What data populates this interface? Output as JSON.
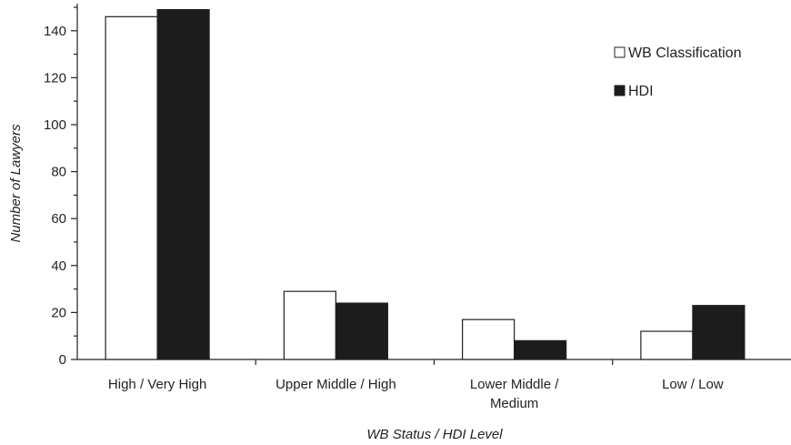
{
  "chart_data": {
    "type": "bar",
    "title": "",
    "xlabel": "WB Status / HDI Level",
    "ylabel": "Number of Lawyers",
    "categories": [
      [
        "High / Very High"
      ],
      [
        "Upper Middle / High"
      ],
      [
        "Lower Middle /",
        "Medium"
      ],
      [
        "Low / Low"
      ]
    ],
    "series": [
      {
        "name": "WB Classification",
        "values": [
          146,
          29,
          17,
          12
        ],
        "color": "#ffffff"
      },
      {
        "name": "HDI",
        "values": [
          149,
          24,
          8,
          23
        ],
        "color": "#1c1c1c"
      }
    ],
    "ylim": [
      0,
      150
    ],
    "yticks": [
      0,
      20,
      40,
      60,
      80,
      100,
      120,
      140
    ],
    "grid": false,
    "legend": "top-right"
  }
}
